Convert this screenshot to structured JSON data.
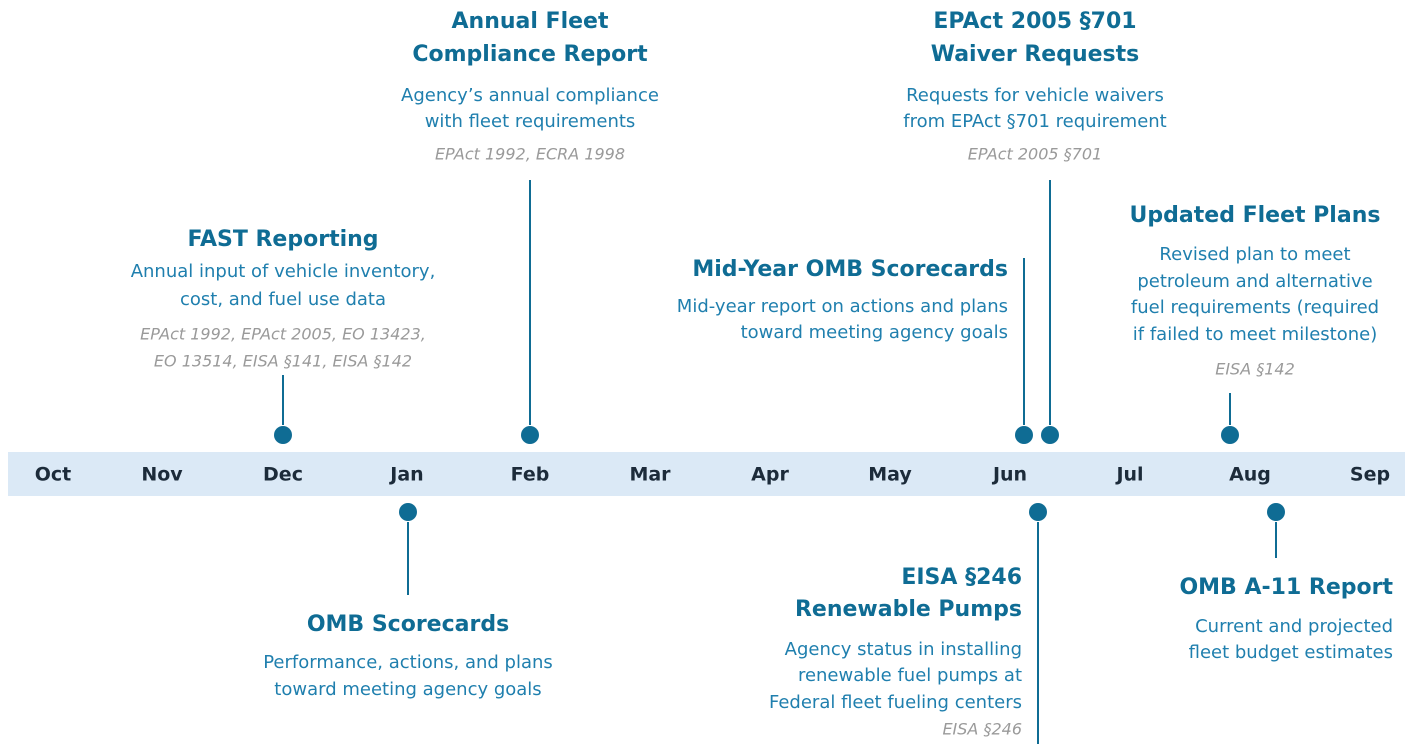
{
  "months": [
    "Oct",
    "Nov",
    "Dec",
    "Jan",
    "Feb",
    "Mar",
    "Apr",
    "May",
    "Jun",
    "Jul",
    "Aug",
    "Sep"
  ],
  "events": [
    {
      "title": [
        "FAST Reporting"
      ],
      "description": [
        "Annual input of vehicle inventory,",
        "cost, and fuel use data"
      ],
      "citation": [
        "EPAct 1992, EPAct 2005, EO 13423,",
        "EO 13514, EISA §141, EISA §142"
      ]
    },
    {
      "title": [
        "Annual Fleet",
        "Compliance Report"
      ],
      "description": [
        "Agency’s annual compliance",
        "with fleet requirements"
      ],
      "citation": [
        "EPAct 1992, ECRA 1998"
      ]
    },
    {
      "title": [
        "Mid-Year OMB Scorecards"
      ],
      "description": [
        "Mid-year report on actions and plans",
        "toward meeting agency goals"
      ],
      "citation": []
    },
    {
      "title": [
        "EPAct 2005 §701",
        "Waiver Requests"
      ],
      "description": [
        "Requests for vehicle waivers",
        "from EPAct §701 requirement"
      ],
      "citation": [
        "EPAct 2005 §701"
      ]
    },
    {
      "title": [
        "Updated Fleet Plans"
      ],
      "description": [
        "Revised plan to meet",
        "petroleum and alternative",
        "fuel requirements (required",
        "if failed to meet milestone)"
      ],
      "citation": [
        "EISA §142"
      ]
    },
    {
      "title": [
        "OMB Scorecards"
      ],
      "description": [
        "Performance, actions, and plans",
        "toward meeting agency goals"
      ],
      "citation": []
    },
    {
      "title": [
        "EISA §246",
        "Renewable Pumps"
      ],
      "description": [
        "Agency status in installing",
        "renewable fuel pumps at",
        "Federal fleet fueling centers"
      ],
      "citation": [
        "EISA §246"
      ]
    },
    {
      "title": [
        "OMB A-11 Report"
      ],
      "description": [
        "Current and projected",
        "fleet budget estimates"
      ],
      "citation": []
    }
  ]
}
